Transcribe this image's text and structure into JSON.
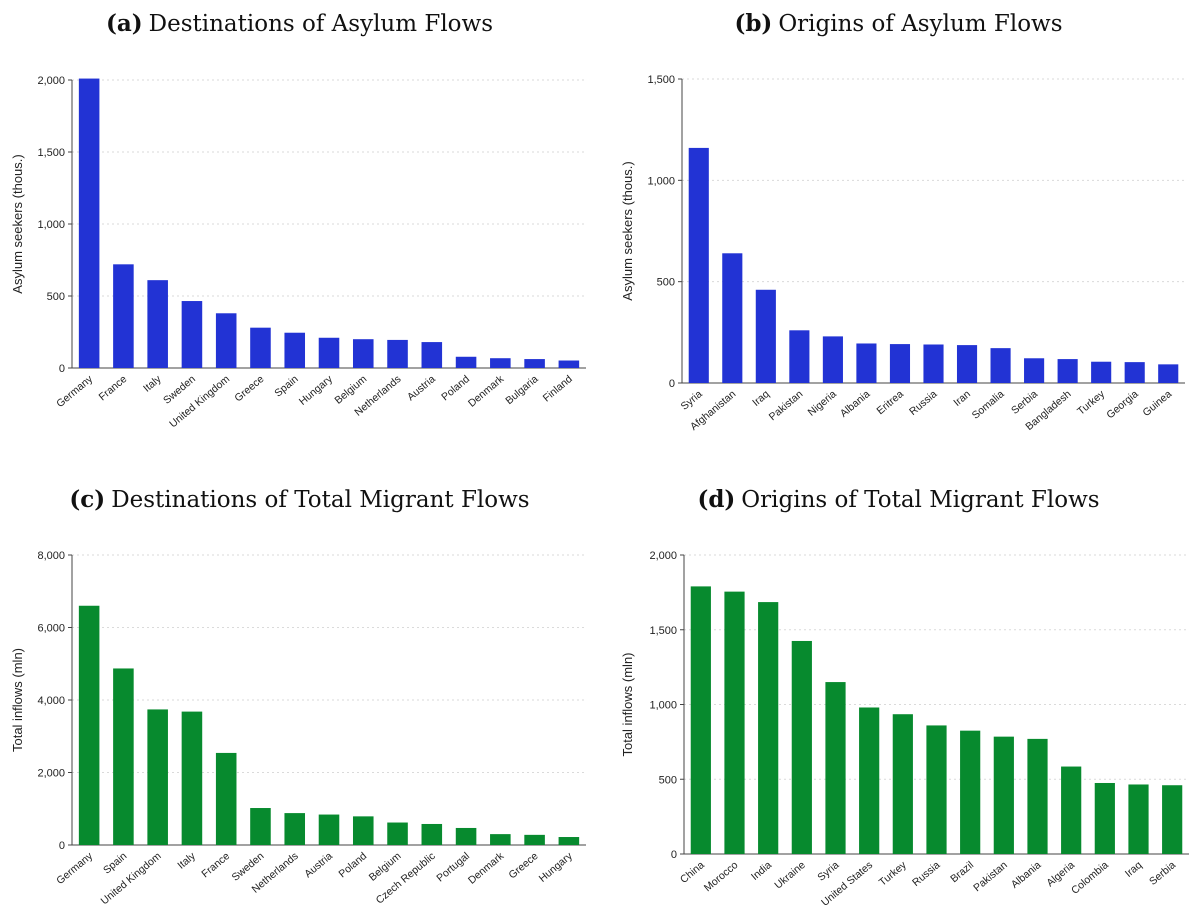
{
  "chart_data": [
    {
      "type": "bar",
      "panel_tag": "(a)",
      "title": "Destinations of Asylum Flows",
      "xlabel": "",
      "ylabel": "Asylum seekers (thous.)",
      "ylim": [
        0,
        2000
      ],
      "yticks": [
        0,
        500,
        1000,
        1500,
        2000
      ],
      "ytick_labels": [
        "0",
        "500",
        "1,000",
        "1,500",
        "2,000"
      ],
      "grid": true,
      "color": "#2233d4",
      "categories": [
        "Germany",
        "France",
        "Italy",
        "Sweden",
        "United Kingdom",
        "Greece",
        "Spain",
        "Hungary",
        "Belgium",
        "Netherlands",
        "Austria",
        "Poland",
        "Denmark",
        "Bulgaria",
        "Finland"
      ],
      "values": [
        2010,
        720,
        610,
        465,
        380,
        280,
        245,
        210,
        200,
        195,
        180,
        78,
        68,
        62,
        52
      ]
    },
    {
      "type": "bar",
      "panel_tag": "(b)",
      "title": "Origins of Asylum Flows",
      "xlabel": "",
      "ylabel": "Asylum seekers (thous.)",
      "ylim": [
        0,
        1500
      ],
      "yticks": [
        0,
        500,
        1000,
        1500
      ],
      "ytick_labels": [
        "0",
        "500",
        "1,000",
        "1,500"
      ],
      "grid": true,
      "color": "#2233d4",
      "categories": [
        "Syria",
        "Afghanistan",
        "Iraq",
        "Pakistan",
        "Nigeria",
        "Albania",
        "Eritrea",
        "Russia",
        "Iran",
        "Somalia",
        "Serbia",
        "Bangladesh",
        "Turkey",
        "Georgia",
        "Guinea"
      ],
      "values": [
        1160,
        640,
        460,
        260,
        230,
        195,
        192,
        190,
        187,
        172,
        122,
        118,
        105,
        103,
        92
      ]
    },
    {
      "type": "bar",
      "panel_tag": "(c)",
      "title": "Destinations of Total Migrant Flows",
      "xlabel": "",
      "ylabel": "Total inflows (mln)",
      "ylim": [
        0,
        8000
      ],
      "yticks": [
        0,
        2000,
        4000,
        6000,
        8000
      ],
      "ytick_labels": [
        "0",
        "2,000",
        "4,000",
        "6,000",
        "8,000"
      ],
      "grid": true,
      "color": "#078a2e",
      "categories": [
        "Germany",
        "Spain",
        "United Kingdom",
        "Italy",
        "France",
        "Sweden",
        "Netherlands",
        "Austria",
        "Poland",
        "Belgium",
        "Czech Republic",
        "Portugal",
        "Denmark",
        "Greece",
        "Hungary"
      ],
      "values": [
        6600,
        4870,
        3740,
        3680,
        2540,
        1020,
        880,
        840,
        790,
        620,
        580,
        470,
        300,
        280,
        220
      ]
    },
    {
      "type": "bar",
      "panel_tag": "(d)",
      "title": "Origins of Total Migrant Flows",
      "xlabel": "",
      "ylabel": "Total inflows (mln)",
      "ylim": [
        0,
        2000
      ],
      "yticks": [
        0,
        500,
        1000,
        1500,
        2000
      ],
      "ytick_labels": [
        "0",
        "500",
        "1,000",
        "1,500",
        "2,000"
      ],
      "grid": true,
      "color": "#078a2e",
      "categories": [
        "China",
        "Morocco",
        "India",
        "Ukraine",
        "Syria",
        "United States",
        "Turkey",
        "Russia",
        "Brazil",
        "Pakistan",
        "Albania",
        "Algeria",
        "Colombia",
        "Iraq",
        "Serbia"
      ],
      "values": [
        1790,
        1755,
        1685,
        1425,
        1150,
        980,
        935,
        860,
        825,
        785,
        770,
        585,
        475,
        465,
        460
      ]
    }
  ]
}
